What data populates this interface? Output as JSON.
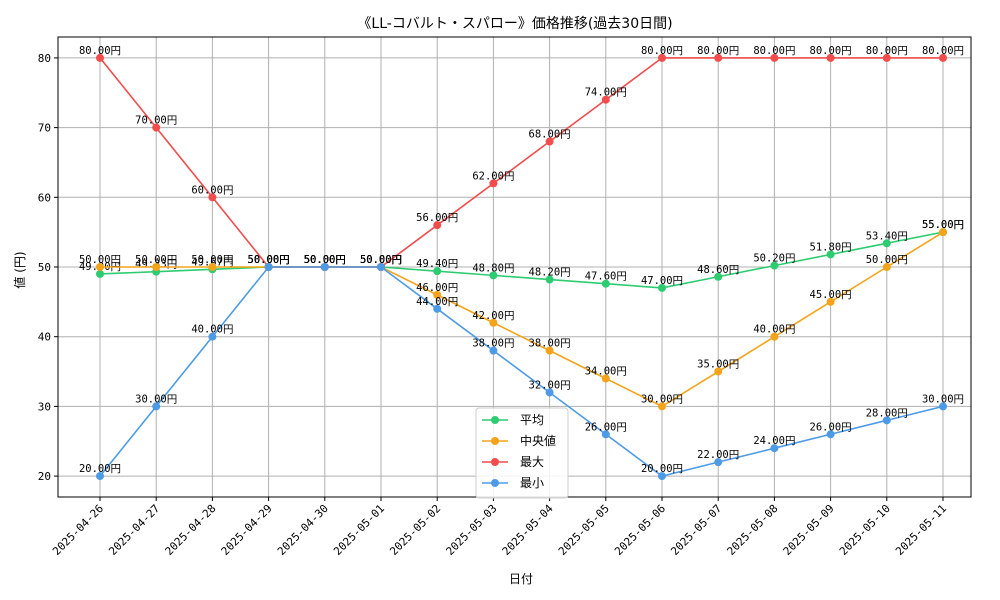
{
  "chart_data": {
    "type": "line",
    "title": "《LL-コバルト・スパロー》価格推移(過去30日間)",
    "xlabel": "日付",
    "ylabel": "値 (円)",
    "ylim": [
      17,
      83
    ],
    "yticks": [
      20,
      30,
      40,
      50,
      60,
      70,
      80
    ],
    "grid": true,
    "legend_position": "bottom-center",
    "value_suffix": "円",
    "categories": [
      "2025-04-26",
      "2025-04-27",
      "2025-04-28",
      "2025-04-29",
      "2025-04-30",
      "2025-05-01",
      "2025-05-02",
      "2025-05-03",
      "2025-05-04",
      "2025-05-05",
      "2025-05-06",
      "2025-05-07",
      "2025-05-08",
      "2025-05-09",
      "2025-05-10",
      "2025-05-11"
    ],
    "series": [
      {
        "name": "平均",
        "color": "#2ecc71",
        "values": [
          49.0,
          49.33,
          49.67,
          50.0,
          50.0,
          50.0,
          49.4,
          48.8,
          48.2,
          47.6,
          47.0,
          48.6,
          50.2,
          51.8,
          53.4,
          55.0
        ]
      },
      {
        "name": "中央値",
        "color": "#f5a31a",
        "values": [
          50.0,
          50.0,
          50.0,
          50.0,
          50.0,
          50.0,
          46.0,
          42.0,
          38.0,
          34.0,
          30.0,
          35.0,
          40.0,
          45.0,
          50.0,
          55.0
        ]
      },
      {
        "name": "最大",
        "color": "#f24c4c",
        "values": [
          80.0,
          70.0,
          60.0,
          50.0,
          50.0,
          50.0,
          56.0,
          62.0,
          68.0,
          74.0,
          80.0,
          80.0,
          80.0,
          80.0,
          80.0,
          80.0
        ]
      },
      {
        "name": "最小",
        "color": "#4d9be6",
        "values": [
          20.0,
          30.0,
          40.0,
          50.0,
          50.0,
          50.0,
          44.0,
          38.0,
          32.0,
          26.0,
          20.0,
          22.0,
          24.0,
          26.0,
          28.0,
          30.0
        ]
      }
    ]
  }
}
